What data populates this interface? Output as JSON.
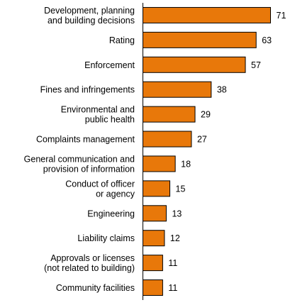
{
  "chart_data": {
    "type": "bar",
    "orientation": "horizontal",
    "categories": [
      [
        "Development, planning",
        "and building decisions"
      ],
      [
        "Rating"
      ],
      [
        "Enforcement"
      ],
      [
        "Fines and infringements"
      ],
      [
        "Environmental and",
        "public health"
      ],
      [
        "Complaints management"
      ],
      [
        "General communication and",
        "provision of information"
      ],
      [
        "Conduct of officer",
        "or agency"
      ],
      [
        "Engineering"
      ],
      [
        "Liability claims"
      ],
      [
        "Approvals or licenses",
        "(not related to building)"
      ],
      [
        "Community facilities"
      ]
    ],
    "values": [
      71,
      63,
      57,
      38,
      29,
      27,
      18,
      15,
      13,
      12,
      11,
      11
    ],
    "bar_color": "#E8780A",
    "bar_border": "#000000",
    "xlim": [
      0,
      71
    ],
    "grid": false,
    "legend": "none"
  }
}
